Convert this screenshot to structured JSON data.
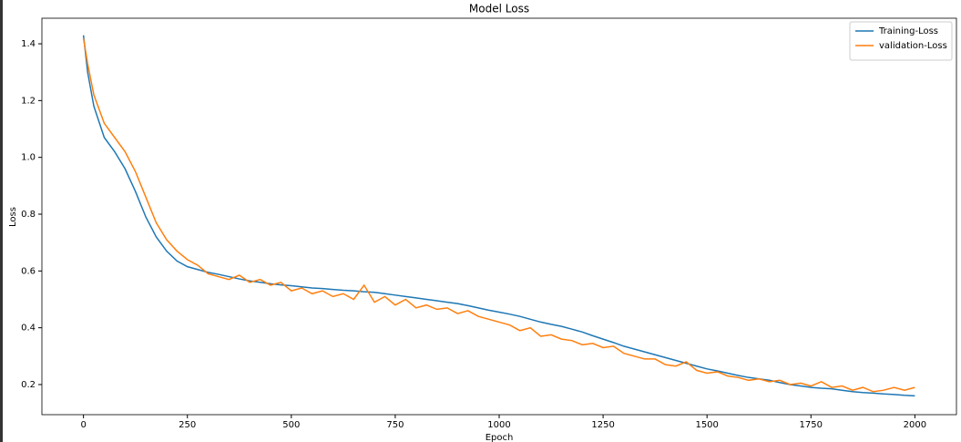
{
  "chart_data": {
    "type": "line",
    "title": "Model Loss",
    "x_label": "Epoch",
    "y_label": "Loss",
    "x": [
      0,
      10,
      25,
      50,
      75,
      100,
      125,
      150,
      175,
      200,
      225,
      250,
      275,
      300,
      325,
      350,
      375,
      400,
      425,
      450,
      475,
      500,
      525,
      550,
      575,
      600,
      625,
      650,
      675,
      700,
      725,
      750,
      775,
      800,
      825,
      850,
      875,
      900,
      925,
      950,
      975,
      1000,
      1025,
      1050,
      1075,
      1100,
      1125,
      1150,
      1175,
      1200,
      1225,
      1250,
      1275,
      1300,
      1325,
      1350,
      1375,
      1400,
      1425,
      1450,
      1475,
      1500,
      1525,
      1550,
      1575,
      1600,
      1625,
      1650,
      1675,
      1700,
      1725,
      1750,
      1775,
      1800,
      1825,
      1850,
      1875,
      1900,
      1925,
      1950,
      1975,
      2000
    ],
    "series": [
      {
        "name": "Training-Loss",
        "color": "#1f77b4",
        "values": [
          1.43,
          1.3,
          1.18,
          1.07,
          1.02,
          0.96,
          0.88,
          0.79,
          0.72,
          0.67,
          0.635,
          0.615,
          0.605,
          0.595,
          0.588,
          0.58,
          0.572,
          0.565,
          0.56,
          0.555,
          0.551,
          0.548,
          0.544,
          0.54,
          0.538,
          0.535,
          0.532,
          0.53,
          0.527,
          0.525,
          0.52,
          0.515,
          0.51,
          0.505,
          0.5,
          0.495,
          0.49,
          0.485,
          0.478,
          0.47,
          0.462,
          0.455,
          0.448,
          0.44,
          0.43,
          0.42,
          0.412,
          0.405,
          0.395,
          0.385,
          0.372,
          0.36,
          0.348,
          0.335,
          0.325,
          0.315,
          0.305,
          0.295,
          0.285,
          0.275,
          0.265,
          0.255,
          0.248,
          0.24,
          0.232,
          0.225,
          0.22,
          0.215,
          0.207,
          0.2,
          0.195,
          0.19,
          0.187,
          0.185,
          0.18,
          0.175,
          0.172,
          0.17,
          0.167,
          0.165,
          0.162,
          0.16
        ]
      },
      {
        "name": "validation-Loss",
        "color": "#ff7f0e",
        "values": [
          1.42,
          1.33,
          1.22,
          1.12,
          1.07,
          1.02,
          0.95,
          0.86,
          0.77,
          0.71,
          0.67,
          0.64,
          0.62,
          0.59,
          0.58,
          0.57,
          0.585,
          0.56,
          0.57,
          0.55,
          0.56,
          0.53,
          0.54,
          0.52,
          0.53,
          0.51,
          0.52,
          0.5,
          0.55,
          0.49,
          0.51,
          0.48,
          0.5,
          0.47,
          0.48,
          0.465,
          0.47,
          0.45,
          0.46,
          0.44,
          0.43,
          0.42,
          0.41,
          0.39,
          0.4,
          0.37,
          0.375,
          0.36,
          0.355,
          0.34,
          0.345,
          0.33,
          0.335,
          0.31,
          0.3,
          0.29,
          0.29,
          0.27,
          0.265,
          0.28,
          0.25,
          0.24,
          0.245,
          0.23,
          0.225,
          0.215,
          0.22,
          0.21,
          0.215,
          0.2,
          0.205,
          0.195,
          0.21,
          0.19,
          0.195,
          0.18,
          0.19,
          0.175,
          0.18,
          0.19,
          0.18,
          0.19
        ]
      }
    ],
    "xlim": [
      -100,
      2100
    ],
    "xticks": [
      0,
      250,
      500,
      750,
      1000,
      1250,
      1500,
      1750,
      2000
    ],
    "ylim": [
      0.094,
      1.49
    ],
    "yticks": [
      0.2,
      0.4,
      0.6,
      0.8,
      {
        "value": 1,
        "label": "1.0"
      },
      1.2,
      1.4
    ],
    "legend": "upper right",
    "grid": false
  }
}
